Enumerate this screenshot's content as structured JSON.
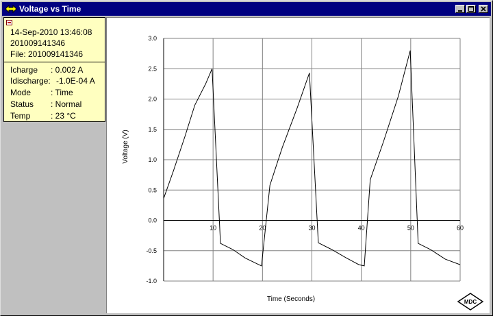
{
  "window": {
    "title": "Voltage vs Time",
    "icon": "diamond-arrow-icon",
    "title_color": "#000080"
  },
  "info": {
    "datetime": "14-Sep-2010 13:46:08",
    "id": "201009141346",
    "file": "File: 201009141346",
    "fields": [
      {
        "label": "Icharge",
        "value": ": 0.002 A"
      },
      {
        "label": "Idischarge:",
        "value": "-1.0E-04 A"
      },
      {
        "label": "Mode",
        "value": ": Time"
      },
      {
        "label": "Status",
        "value": ": Normal"
      },
      {
        "label": "Temp",
        "value": ": 23 °C"
      }
    ],
    "background": "#ffffc0"
  },
  "logo": {
    "text": "MDC"
  },
  "chart_data": {
    "type": "line",
    "xlabel": "Time (Seconds)",
    "ylabel": "Voltage (V)",
    "xlim": [
      0,
      60
    ],
    "ylim": [
      -1.0,
      3.0
    ],
    "x_ticks": [
      10,
      20,
      30,
      40,
      50,
      60
    ],
    "y_ticks": [
      -1.0,
      -0.5,
      0.0,
      0.5,
      1.0,
      1.5,
      2.0,
      2.5,
      3.0
    ],
    "y_tick_labels": [
      "-1.0",
      "-0.5",
      "0.0",
      "0.5",
      "1.0",
      "1.5",
      "2.0",
      "2.5",
      "3.0"
    ],
    "x_tick_labels": [
      "10",
      "20",
      "30",
      "40",
      "50",
      "60"
    ],
    "grid": true,
    "series": [
      {
        "color": "#000000",
        "x": [
          0.0,
          2.0,
          4.3,
          6.3,
          8.5,
          9.8,
          11.5,
          14.0,
          16.5,
          19.0,
          19.8,
          21.5,
          24.0,
          27.0,
          29.5,
          31.3,
          34.0,
          37.0,
          39.5,
          40.6,
          41.8,
          44.5,
          47.5,
          49.9,
          51.5,
          54.0,
          57.0,
          60.0
        ],
        "y": [
          0.36,
          0.82,
          1.38,
          1.9,
          2.25,
          2.5,
          -0.38,
          -0.48,
          -0.62,
          -0.72,
          -0.75,
          0.58,
          1.2,
          1.85,
          2.43,
          -0.37,
          -0.48,
          -0.62,
          -0.73,
          -0.75,
          0.67,
          1.3,
          2.05,
          2.8,
          -0.38,
          -0.48,
          -0.64,
          -0.73
        ]
      }
    ]
  }
}
